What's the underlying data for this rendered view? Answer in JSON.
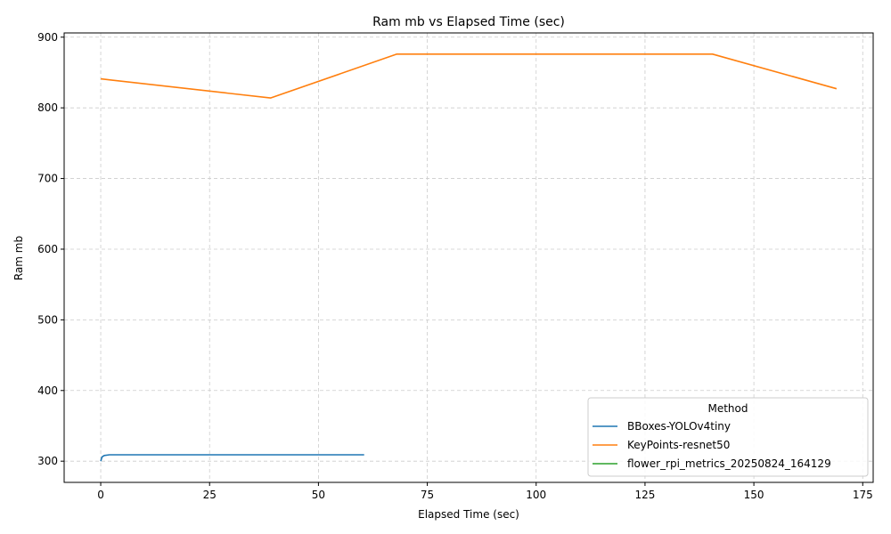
{
  "chart_data": {
    "type": "line",
    "title": "Ram mb vs Elapsed Time (sec)",
    "xlabel": "Elapsed Time (sec)",
    "ylabel": "Ram mb",
    "xlim": [
      -8.4,
      177.4
    ],
    "ylim": [
      270,
      906
    ],
    "xticks": [
      0,
      25,
      50,
      75,
      100,
      125,
      150,
      175
    ],
    "yticks": [
      300,
      400,
      500,
      600,
      700,
      800,
      900
    ],
    "grid": true,
    "legend": {
      "title": "Method",
      "placement": "lower-right"
    },
    "series": [
      {
        "name": "BBoxes-YOLOv4tiny",
        "color": "#1f77b4",
        "points": [
          [
            0,
            300
          ],
          [
            0.3,
            306
          ],
          [
            0.8,
            308
          ],
          [
            2,
            309
          ],
          [
            5,
            309
          ],
          [
            20,
            309
          ],
          [
            40,
            309
          ],
          [
            60.5,
            309
          ]
        ]
      },
      {
        "name": "KeyPoints-resnet50",
        "color": "#ff7f0e",
        "points": [
          [
            0,
            841
          ],
          [
            39,
            814
          ],
          [
            68,
            876
          ],
          [
            140.5,
            876
          ],
          [
            169,
            827
          ]
        ]
      },
      {
        "name": "flower_rpi_metrics_20250824_164129",
        "color": "#2ca02c",
        "points": []
      }
    ]
  }
}
